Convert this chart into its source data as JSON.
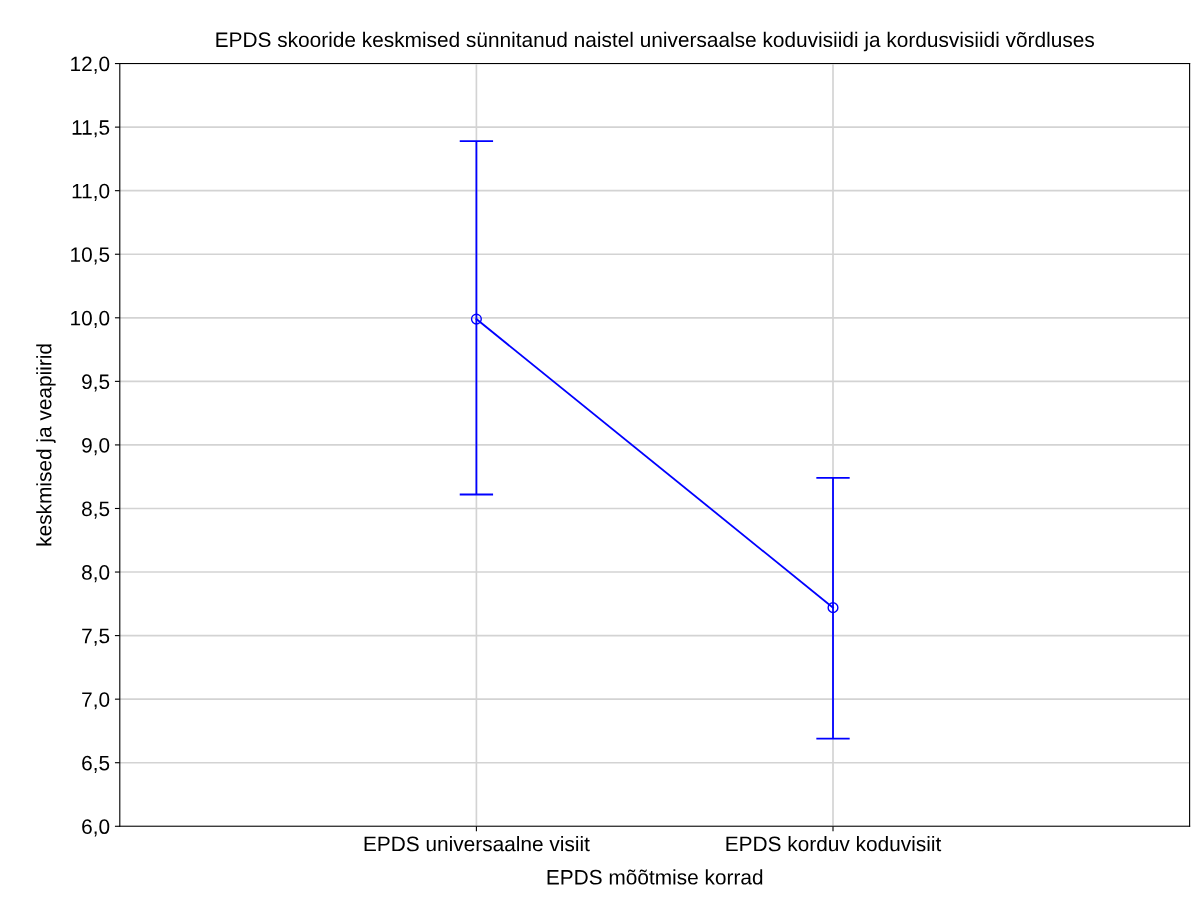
{
  "chart_data": {
    "type": "line",
    "title": "EPDS skooride keskmised sünnitanud naistel universaalse koduvisiidi ja kordusvisiidi võrdluses",
    "xlabel": "EPDS mõõtmise korrad",
    "ylabel": "keskmised ja veapiirid",
    "categories": [
      "EPDS universaalne visiit",
      "EPDS korduv koduvisiit"
    ],
    "series": [
      {
        "color": "#0000ff",
        "values": [
          9.99,
          7.72
        ],
        "errors": [
          [
            8.61,
            11.39
          ],
          [
            6.69,
            8.74
          ]
        ]
      }
    ],
    "ylim": [
      6,
      12
    ],
    "yticks": [
      {
        "value": 6,
        "label": "6,0"
      },
      {
        "value": 6.5,
        "label": "6,5"
      },
      {
        "value": 7,
        "label": "7,0"
      },
      {
        "value": 7.5,
        "label": "7,5"
      },
      {
        "value": 8,
        "label": "8,0"
      },
      {
        "value": 8.5,
        "label": "8,5"
      },
      {
        "value": 9,
        "label": "9,0"
      },
      {
        "value": 9.5,
        "label": "9,5"
      },
      {
        "value": 10,
        "label": "10,0"
      },
      {
        "value": 10.5,
        "label": "10,5"
      },
      {
        "value": 11,
        "label": "11,0"
      },
      {
        "value": 11.5,
        "label": "11,5"
      },
      {
        "value": 12,
        "label": "12,0"
      }
    ],
    "grid": true,
    "marker": "circle",
    "line_style": "solid"
  }
}
